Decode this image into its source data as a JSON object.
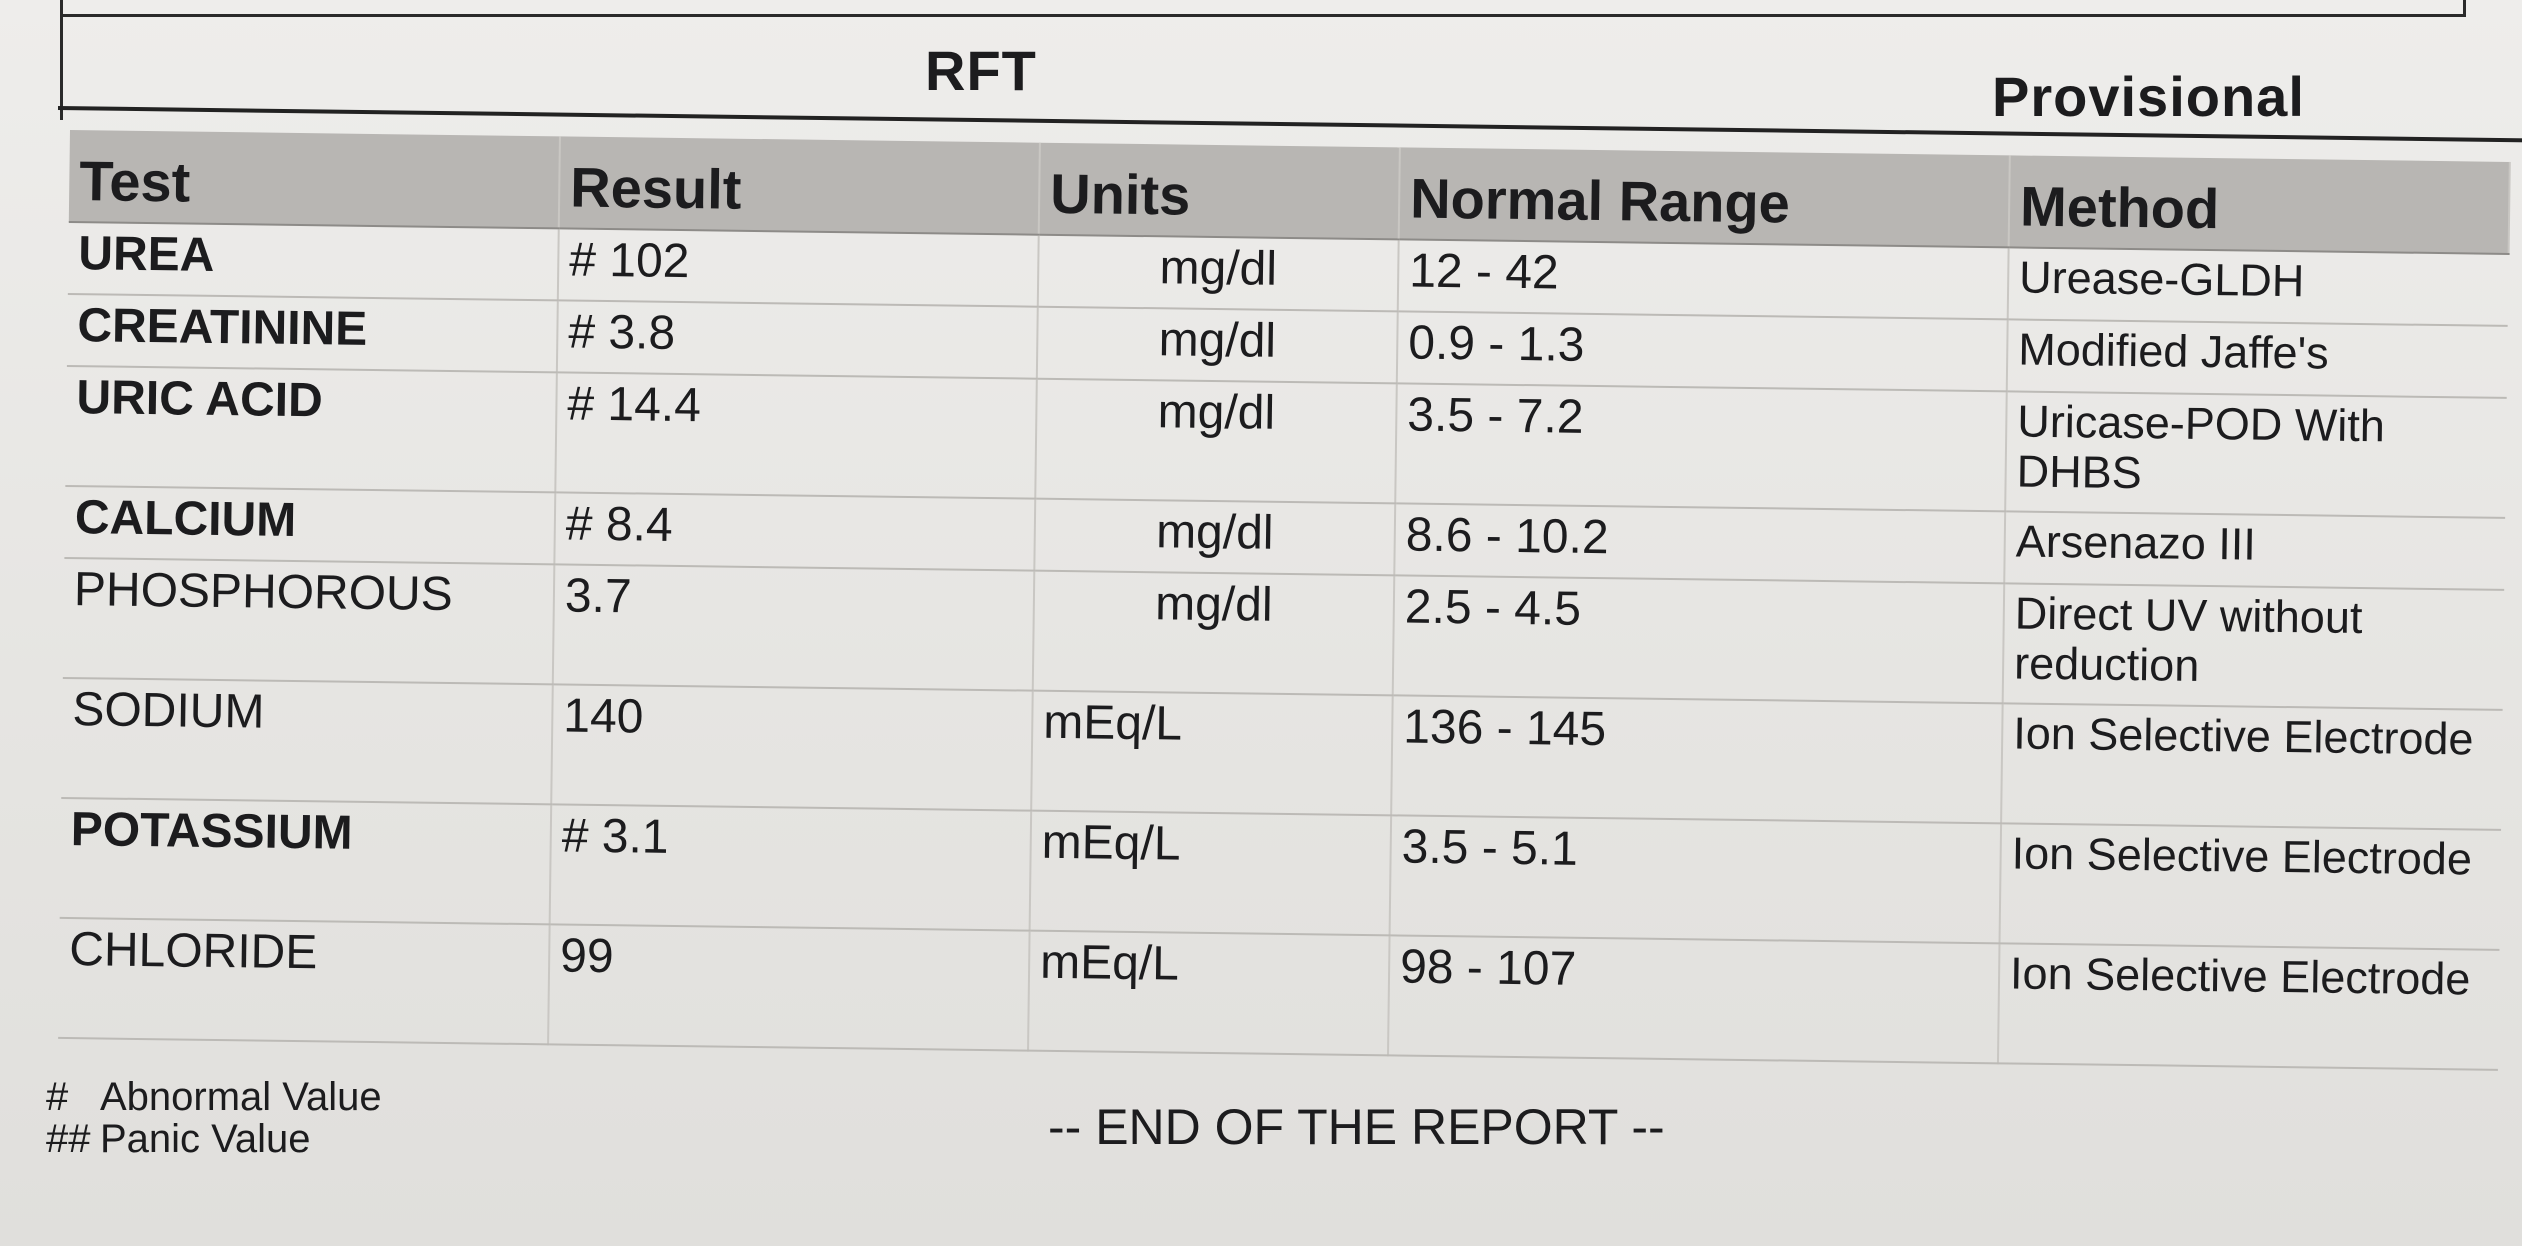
{
  "report": {
    "title": "RFT",
    "status": "Provisional"
  },
  "table": {
    "headers": {
      "test": "Test",
      "result": "Result",
      "units": "Units",
      "normal_range": "Normal Range",
      "method": "Method"
    },
    "rows": [
      {
        "test": "UREA",
        "result": "# 102",
        "units": "mg/dl",
        "normal_range": "12 - 42",
        "method": "Urease-GLDH",
        "bold": true
      },
      {
        "test": "CREATININE",
        "result": "# 3.8",
        "units": "mg/dl",
        "normal_range": "0.9 - 1.3",
        "method": "Modified Jaffe's",
        "bold": true
      },
      {
        "test": "URIC ACID",
        "result": "# 14.4",
        "units": "mg/dl",
        "normal_range": "3.5 - 7.2",
        "method": "Uricase-POD With DHBS",
        "bold": true
      },
      {
        "test": "CALCIUM",
        "result": "# 8.4",
        "units": "mg/dl",
        "normal_range": "8.6 - 10.2",
        "method": "Arsenazo  III",
        "bold": true
      },
      {
        "test": "PHOSPHOROUS",
        "result": "3.7",
        "units": "mg/dl",
        "normal_range": "2.5 - 4.5",
        "method": "Direct  UV  without reduction",
        "bold": false
      },
      {
        "test": "SODIUM",
        "result": "140",
        "units": "mEq/L",
        "normal_range": "136 - 145",
        "method": "Ion Selective Electrode",
        "bold": false
      },
      {
        "test": "POTASSIUM",
        "result": "# 3.1",
        "units": "mEq/L",
        "normal_range": "3.5 - 5.1",
        "method": "Ion Selective Electrode",
        "bold": true
      },
      {
        "test": "CHLORIDE",
        "result": "99",
        "units": "mEq/L",
        "normal_range": "98 - 107",
        "method": "Ion Selective Electrode",
        "bold": false
      }
    ]
  },
  "legend": {
    "abnormal_symbol": "#",
    "abnormal_label": "Abnormal Value",
    "panic_symbol": "##",
    "panic_label": "Panic Value"
  },
  "footer": {
    "end_text": "-- END OF THE REPORT --"
  }
}
